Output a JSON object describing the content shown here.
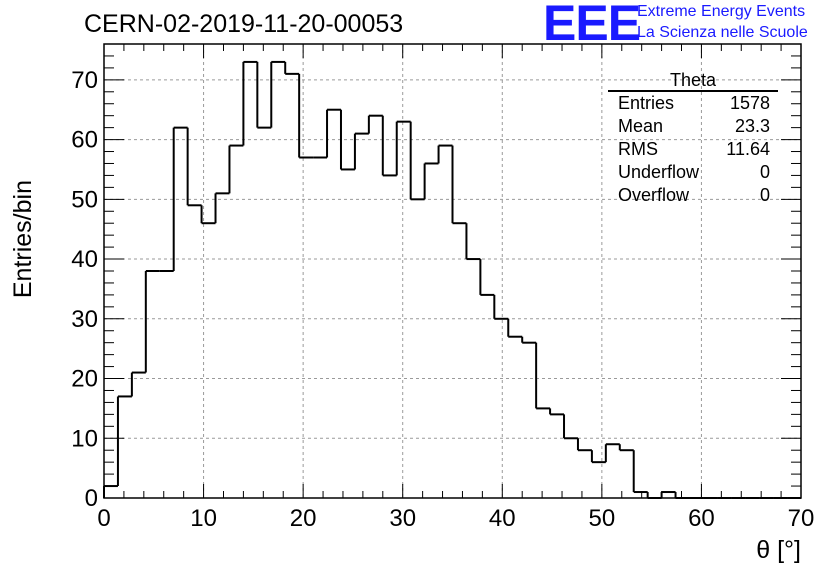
{
  "header": {
    "run_title": "CERN-02-2019-11-20-00053"
  },
  "logo": {
    "mark": "EEE",
    "line1": "Extreme Energy Events",
    "line2": "La Scienza nelle Scuole",
    "color": "#1a1aff"
  },
  "stats_box": {
    "title": "Theta",
    "rows": [
      {
        "label": "Entries",
        "value": "1578"
      },
      {
        "label": "Mean",
        "value": "23.3"
      },
      {
        "label": "RMS",
        "value": "11.64"
      },
      {
        "label": "Underflow",
        "value": "0"
      },
      {
        "label": "Overflow",
        "value": "0"
      }
    ]
  },
  "chart_data": {
    "type": "bar",
    "histogram": true,
    "xlabel": "θ [°]",
    "ylabel": "Entries/bin",
    "xlim": [
      0,
      70
    ],
    "ylim": [
      0,
      76
    ],
    "x_ticks": [
      0,
      10,
      20,
      30,
      40,
      50,
      60,
      70
    ],
    "y_ticks": [
      0,
      10,
      20,
      30,
      40,
      50,
      60,
      70
    ],
    "grid": true,
    "bin_width": 1.4,
    "bin_edges_start": 0,
    "values": [
      2,
      17,
      21,
      38,
      38,
      62,
      49,
      46,
      51,
      59,
      73,
      62,
      73,
      71,
      57,
      57,
      65,
      55,
      61,
      64,
      54,
      63,
      50,
      56,
      59,
      46,
      40,
      34,
      30,
      27,
      26,
      15,
      14,
      10,
      8,
      6,
      9,
      8,
      1,
      0,
      1,
      0,
      0,
      0,
      0,
      0,
      0,
      0,
      0,
      0
    ],
    "line_color": "#000000",
    "grid_color": "#9a9a9a"
  }
}
